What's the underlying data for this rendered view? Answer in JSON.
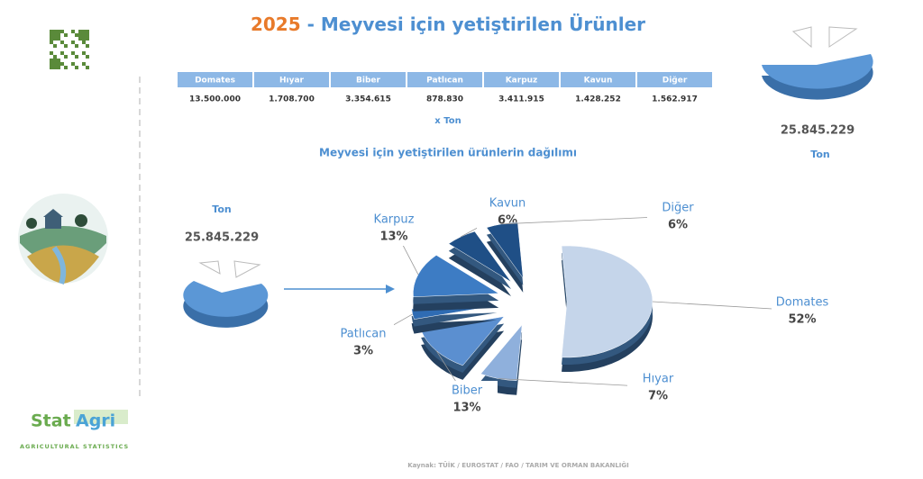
{
  "header": {
    "year": "2025",
    "title": " - Meyvesi için yetiştirilen Ürünler"
  },
  "table": {
    "headers": [
      "Domates",
      "Hıyar",
      "Biber",
      "Patlıcan",
      "Karpuz",
      "Kavun",
      "Diğer"
    ],
    "rows": [
      [
        "13.500.000",
        "1.708.700",
        "3.354.615",
        "878.830",
        "3.411.915",
        "1.428.252",
        "1.562.917"
      ]
    ],
    "unit": "x  Ton"
  },
  "right_total": {
    "value": "25.845.229",
    "unit": "Ton"
  },
  "left_total": {
    "value": "25.845.229",
    "unit": "Ton"
  },
  "logo": {
    "name_1": "Stat",
    "name_2": "Agri",
    "tagline": "AGRICULTURAL STATISTICS"
  },
  "source": "Kaynak: TÜİK / EUROSTAT / FAO / TARIM VE ORMAN BAKANLIĞI",
  "chart_data": {
    "type": "pie",
    "title": "Meyvesi için yetiştirilen ürünlerin dağılımı",
    "categories": [
      "Domates",
      "Hıyar",
      "Biber",
      "Patlıcan",
      "Karpuz",
      "Kavun",
      "Diğer"
    ],
    "values": [
      52,
      7,
      13,
      3,
      13,
      6,
      6
    ],
    "value_labels": [
      "52%",
      "7%",
      "13%",
      "3%",
      "13%",
      "6%",
      "6%"
    ],
    "colors": [
      "#c5d5ea",
      "#8fb0dc",
      "#5b8fd0",
      "#2f6cb3",
      "#3d7cc4",
      "#1f4f86",
      "#1f4f86"
    ]
  }
}
